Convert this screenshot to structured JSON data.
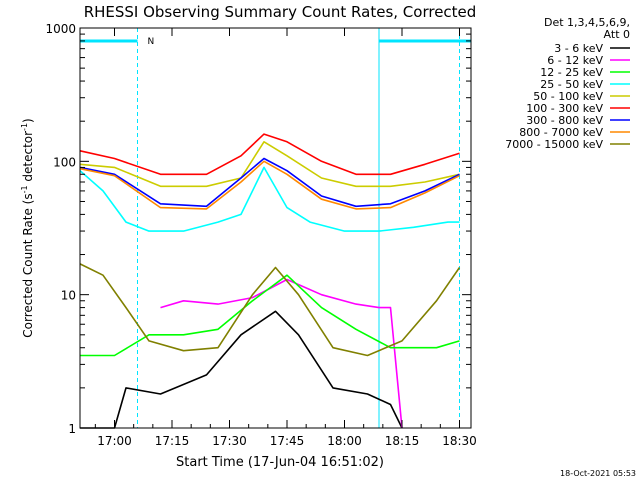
{
  "chart_data": {
    "type": "line",
    "title": "RHESSI Observing Summary Count Rates, Corrected",
    "xlabel": "Start Time (17-Jun-04 16:51:02)",
    "ylabel_main": "Corrected Count Rate (s",
    "ylabel_sup1": "-1",
    "ylabel_mid": " detector",
    "ylabel_sup2": "-1",
    "ylabel_end": ")",
    "yscale": "log",
    "xlim_minutes": [
      16.85,
      18.55
    ],
    "ylim": [
      1,
      1000
    ],
    "x_ticks": [
      {
        "t": 17.0,
        "label": "17:00"
      },
      {
        "t": 17.25,
        "label": "17:15"
      },
      {
        "t": 17.5,
        "label": "17:30"
      },
      {
        "t": 17.75,
        "label": "17:45"
      },
      {
        "t": 18.0,
        "label": "18:00"
      },
      {
        "t": 18.25,
        "label": "18:15"
      },
      {
        "t": 18.5,
        "label": "18:30"
      }
    ],
    "y_ticks": [
      {
        "v": 1,
        "label": "1"
      },
      {
        "v": 10,
        "label": "10"
      },
      {
        "v": 100,
        "label": "100"
      },
      {
        "v": 1000,
        "label": "1000"
      }
    ],
    "legend_header": [
      "Det 1,3,4,5,6,9,",
      "Att 0"
    ],
    "legend_placement": "right",
    "night_intervals": [
      [
        16.85,
        17.1
      ],
      [
        18.15,
        18.55
      ]
    ],
    "night_label": "N",
    "cyan_boundaries": [
      17.1,
      18.15,
      18.5
    ],
    "series": [
      {
        "name": "3 - 6 keV",
        "color": "#000000",
        "x": [
          16.85,
          17.0,
          17.05,
          17.2,
          17.4,
          17.55,
          17.7,
          17.8,
          17.95,
          18.1,
          18.2,
          18.25
        ],
        "y": [
          1.0,
          1.0,
          2.0,
          1.8,
          2.5,
          5.0,
          7.5,
          5.0,
          2.0,
          1.8,
          1.5,
          1.0
        ]
      },
      {
        "name": "6 - 12 keV",
        "color": "#ff00ff",
        "x": [
          17.2,
          17.3,
          17.45,
          17.6,
          17.75,
          17.9,
          18.05,
          18.15,
          18.2,
          18.25
        ],
        "y": [
          8.0,
          9.0,
          8.5,
          9.5,
          13.0,
          10.0,
          8.5,
          8.0,
          8.0,
          1.0
        ]
      },
      {
        "name": "12 - 25 keV",
        "color": "#00ff00",
        "x": [
          16.85,
          17.0,
          17.15,
          17.3,
          17.45,
          17.6,
          17.75,
          17.9,
          18.05,
          18.2,
          18.4,
          18.5
        ],
        "y": [
          3.5,
          3.5,
          5.0,
          5.0,
          5.5,
          9.0,
          14.0,
          8.0,
          5.5,
          4.0,
          4.0,
          4.5
        ]
      },
      {
        "name": "25 - 50 keV",
        "color": "#00ffff",
        "x": [
          16.85,
          16.95,
          17.05,
          17.15,
          17.3,
          17.45,
          17.55,
          17.65,
          17.75,
          17.85,
          18.0,
          18.15,
          18.3,
          18.45,
          18.5
        ],
        "y": [
          85.0,
          60.0,
          35.0,
          30.0,
          30.0,
          35.0,
          40.0,
          90.0,
          45.0,
          35.0,
          30.0,
          30.0,
          32.0,
          35.0,
          35.0
        ]
      },
      {
        "name": "50 - 100 keV",
        "color": "#cccc00",
        "x": [
          16.85,
          17.0,
          17.2,
          17.4,
          17.55,
          17.65,
          17.75,
          17.9,
          18.05,
          18.2,
          18.35,
          18.5
        ],
        "y": [
          95.0,
          90.0,
          65.0,
          65.0,
          75.0,
          140.0,
          110.0,
          75.0,
          65.0,
          65.0,
          70.0,
          80.0
        ]
      },
      {
        "name": "100 - 300 keV",
        "color": "#ff0000",
        "x": [
          16.85,
          17.0,
          17.2,
          17.4,
          17.55,
          17.65,
          17.75,
          17.9,
          18.05,
          18.2,
          18.35,
          18.5
        ],
        "y": [
          120.0,
          105.0,
          80.0,
          80.0,
          110.0,
          160.0,
          140.0,
          100.0,
          80.0,
          80.0,
          95.0,
          115.0
        ]
      },
      {
        "name": "300 - 800 keV",
        "color": "#0000ff",
        "x": [
          16.85,
          17.0,
          17.2,
          17.4,
          17.55,
          17.65,
          17.75,
          17.9,
          18.05,
          18.2,
          18.35,
          18.5
        ],
        "y": [
          90.0,
          80.0,
          48.0,
          46.0,
          75.0,
          105.0,
          85.0,
          55.0,
          46.0,
          48.0,
          60.0,
          80.0
        ]
      },
      {
        "name": "800 - 7000 keV",
        "color": "#ff8800",
        "x": [
          16.85,
          17.0,
          17.2,
          17.4,
          17.55,
          17.65,
          17.75,
          17.9,
          18.05,
          18.2,
          18.35,
          18.5
        ],
        "y": [
          88.0,
          78.0,
          45.0,
          44.0,
          70.0,
          100.0,
          80.0,
          52.0,
          44.0,
          45.0,
          58.0,
          78.0
        ]
      },
      {
        "name": "7000 - 15000 keV",
        "color": "#808000",
        "x": [
          16.85,
          16.95,
          17.05,
          17.15,
          17.3,
          17.45,
          17.6,
          17.7,
          17.8,
          17.95,
          18.1,
          18.25,
          18.4,
          18.5
        ],
        "y": [
          17.0,
          14.0,
          8.0,
          4.5,
          3.8,
          4.0,
          10.0,
          16.0,
          10.0,
          4.0,
          3.5,
          4.5,
          9.0,
          16.0
        ]
      }
    ],
    "timestamp": "18-Oct-2021 05:53"
  }
}
